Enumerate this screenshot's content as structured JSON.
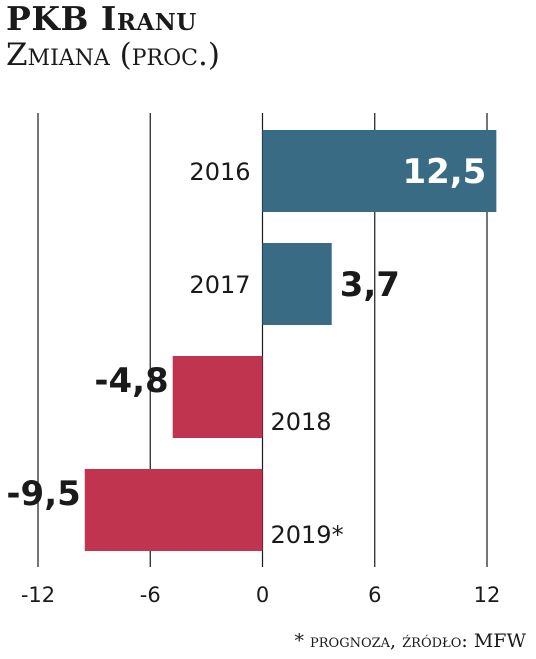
{
  "header": {
    "title": "PKB Iranu",
    "subtitle": "Zmiana (proc.)"
  },
  "footnote": "* prognoza, źródło: MFW",
  "colors": {
    "positive": "#3a6b85",
    "negative": "#c0344f",
    "grid": "#1a1a1a"
  },
  "chart_data": {
    "type": "bar",
    "orientation": "horizontal",
    "title": "PKB Iranu",
    "subtitle": "Zmiana (proc.)",
    "categories": [
      "2016",
      "2017",
      "2018",
      "2019*"
    ],
    "values": [
      12.5,
      3.7,
      -4.8,
      -9.5
    ],
    "value_labels": [
      "12,5",
      "3,7",
      "-4,8",
      "-9,5"
    ],
    "xlim": [
      -12,
      12
    ],
    "ticks": [
      -12,
      -6,
      0,
      6,
      12
    ],
    "tick_labels": [
      "-12",
      "-6",
      "0",
      "6",
      "12"
    ],
    "grid": true,
    "legend": false
  }
}
